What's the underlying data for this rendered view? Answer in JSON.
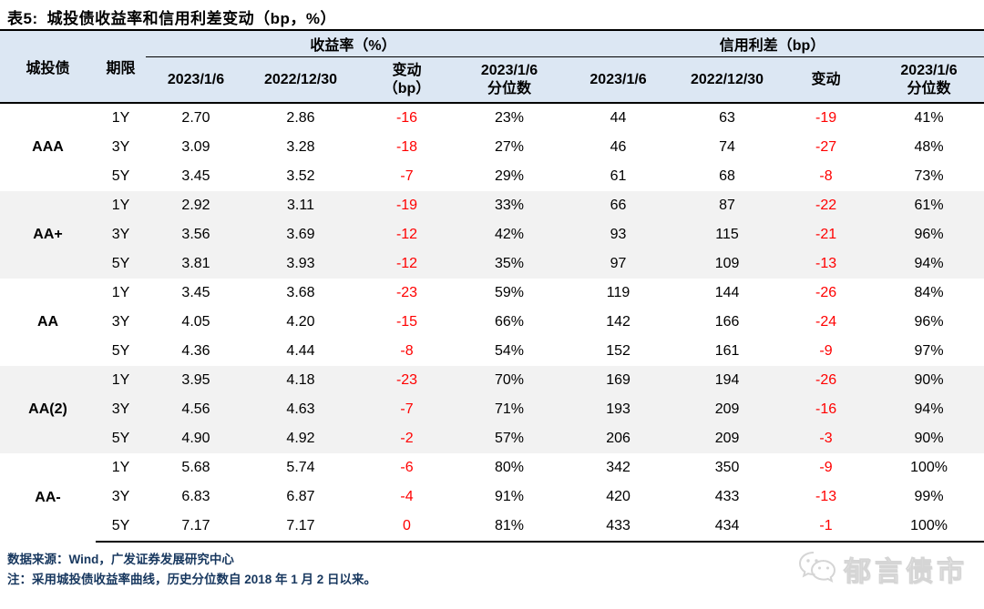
{
  "title": {
    "table_no": "表5:",
    "text": "城投债收益率和信用利差变动（bp，%）"
  },
  "table": {
    "corner": {
      "rating_header": "城投债",
      "tenor_header": "期限"
    },
    "group_headers": [
      {
        "label": "收益率（%）"
      },
      {
        "label": "信用利差（bp）"
      }
    ],
    "sub_headers": [
      {
        "lines": [
          "2023/1/6"
        ]
      },
      {
        "lines": [
          "2022/12/30"
        ]
      },
      {
        "lines": [
          "变动",
          "（bp）"
        ]
      },
      {
        "lines": [
          "2023/1/6",
          "分位数"
        ]
      },
      {
        "lines": [
          "2023/1/6"
        ]
      },
      {
        "lines": [
          "2022/12/30"
        ]
      },
      {
        "lines": [
          "变动"
        ]
      },
      {
        "lines": [
          "2023/1/6",
          "分位数"
        ]
      }
    ],
    "change_column_indices": [
      2,
      6
    ],
    "rating_groups": [
      {
        "rating": "AAA",
        "rows": [
          {
            "tenor": "1Y",
            "cells": [
              "2.70",
              "2.86",
              "-16",
              "23%",
              "44",
              "63",
              "-19",
              "41%"
            ]
          },
          {
            "tenor": "3Y",
            "cells": [
              "3.09",
              "3.28",
              "-18",
              "27%",
              "46",
              "74",
              "-27",
              "48%"
            ]
          },
          {
            "tenor": "5Y",
            "cells": [
              "3.45",
              "3.52",
              "-7",
              "29%",
              "61",
              "68",
              "-8",
              "73%"
            ]
          }
        ]
      },
      {
        "rating": "AA+",
        "rows": [
          {
            "tenor": "1Y",
            "cells": [
              "2.92",
              "3.11",
              "-19",
              "33%",
              "66",
              "87",
              "-22",
              "61%"
            ]
          },
          {
            "tenor": "3Y",
            "cells": [
              "3.56",
              "3.69",
              "-12",
              "42%",
              "93",
              "115",
              "-21",
              "96%"
            ]
          },
          {
            "tenor": "5Y",
            "cells": [
              "3.81",
              "3.93",
              "-12",
              "35%",
              "97",
              "109",
              "-13",
              "94%"
            ]
          }
        ]
      },
      {
        "rating": "AA",
        "rows": [
          {
            "tenor": "1Y",
            "cells": [
              "3.45",
              "3.68",
              "-23",
              "59%",
              "119",
              "144",
              "-26",
              "84%"
            ]
          },
          {
            "tenor": "3Y",
            "cells": [
              "4.05",
              "4.20",
              "-15",
              "66%",
              "142",
              "166",
              "-24",
              "96%"
            ]
          },
          {
            "tenor": "5Y",
            "cells": [
              "4.36",
              "4.44",
              "-8",
              "54%",
              "152",
              "161",
              "-9",
              "97%"
            ]
          }
        ]
      },
      {
        "rating": "AA(2)",
        "rows": [
          {
            "tenor": "1Y",
            "cells": [
              "3.95",
              "4.18",
              "-23",
              "70%",
              "169",
              "194",
              "-26",
              "90%"
            ]
          },
          {
            "tenor": "3Y",
            "cells": [
              "4.56",
              "4.63",
              "-7",
              "71%",
              "193",
              "209",
              "-16",
              "94%"
            ]
          },
          {
            "tenor": "5Y",
            "cells": [
              "4.90",
              "4.92",
              "-2",
              "57%",
              "206",
              "209",
              "-3",
              "90%"
            ]
          }
        ]
      },
      {
        "rating": "AA-",
        "rows": [
          {
            "tenor": "1Y",
            "cells": [
              "5.68",
              "5.74",
              "-6",
              "80%",
              "342",
              "350",
              "-9",
              "100%"
            ]
          },
          {
            "tenor": "3Y",
            "cells": [
              "6.83",
              "6.87",
              "-4",
              "91%",
              "420",
              "433",
              "-13",
              "99%"
            ]
          },
          {
            "tenor": "5Y",
            "cells": [
              "7.17",
              "7.17",
              "0",
              "81%",
              "433",
              "434",
              "-1",
              "100%"
            ]
          }
        ]
      }
    ]
  },
  "footer": {
    "source": "数据来源：Wind，广发证券发展研究中心",
    "note": "注：采用城投债收益率曲线，历史分位数自 2018 年 1 月 2 日以来。"
  },
  "watermark": {
    "label": "郁言债市",
    "icon": "wechat-icon"
  },
  "colors": {
    "header_bg": "#dce7f3",
    "stripe_bg": "#f2f2f2",
    "negative_change": "#ff0000",
    "footer_text": "#17375e"
  }
}
